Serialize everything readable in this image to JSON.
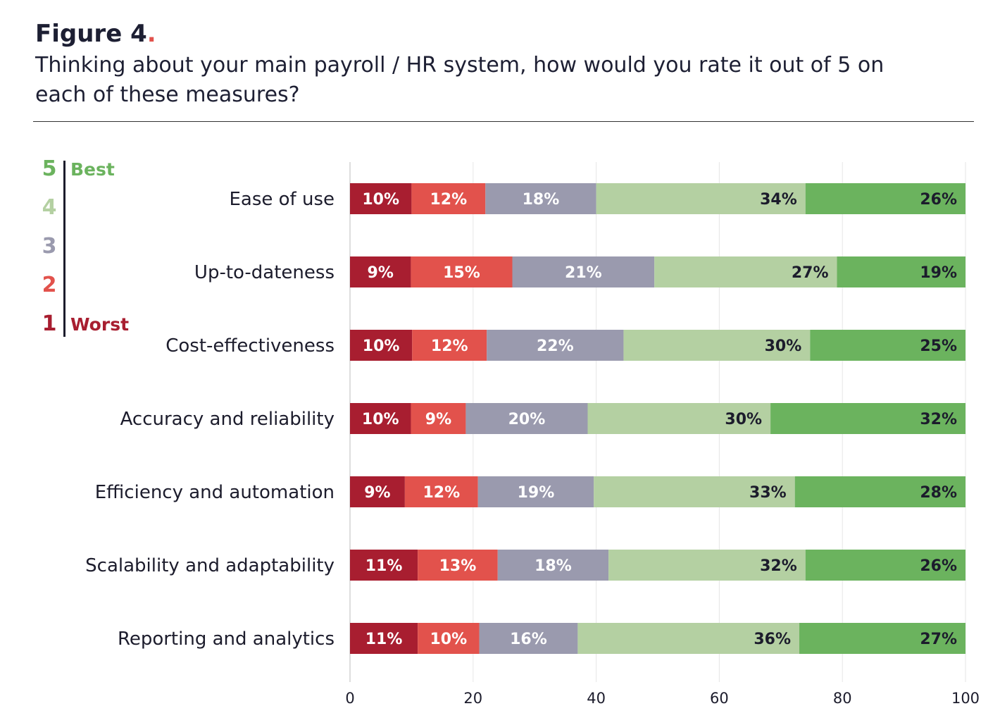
{
  "header": {
    "figure_label": "Figure 4",
    "figure_dot": ".",
    "subtitle": "Thinking about your main payroll / HR system, how would you rate it out of 5 on each of these measures?"
  },
  "scale_legend": {
    "items": [
      {
        "num": "5",
        "word": "Best",
        "color": "#6bb35e"
      },
      {
        "num": "4",
        "word": "",
        "color": "#b4d0a2"
      },
      {
        "num": "3",
        "word": "",
        "color": "#9a9aae"
      },
      {
        "num": "2",
        "word": "",
        "color": "#e2524c"
      },
      {
        "num": "1",
        "word": "Worst",
        "color": "#a81e30"
      }
    ]
  },
  "chart_data": {
    "type": "bar",
    "orientation": "horizontal",
    "stacked": true,
    "categories": [
      "Ease of use",
      "Up-to-dateness",
      "Cost-effectiveness",
      "Accuracy and reliability",
      "Efficiency and automation",
      "Scalability and adaptability",
      "Reporting and analytics"
    ],
    "series": [
      {
        "name": "1",
        "color": "#a81e30",
        "label_color": "#ffffff",
        "values": [
          10,
          9,
          10,
          10,
          9,
          11,
          11
        ],
        "labels": [
          "10%",
          "9%",
          "10%",
          "10%",
          "9%",
          "11%",
          "11%"
        ]
      },
      {
        "name": "2",
        "color": "#e2524c",
        "label_color": "#ffffff",
        "values": [
          12,
          15,
          12,
          9,
          12,
          13,
          10
        ],
        "labels": [
          "12%",
          "15%",
          "12%",
          "9%",
          "12%",
          "13%",
          "10%"
        ]
      },
      {
        "name": "3",
        "color": "#9a9aae",
        "label_color": "#ffffff",
        "values": [
          18,
          21,
          22,
          20,
          19,
          18,
          16
        ],
        "labels": [
          "18%",
          "21%",
          "22%",
          "20%",
          "19%",
          "18%",
          "16%"
        ]
      },
      {
        "name": "4",
        "color": "#b4d0a2",
        "label_color": "#1c1c2c",
        "values": [
          34,
          27,
          30,
          30,
          33,
          32,
          36
        ],
        "labels": [
          "34%",
          "27%",
          "30%",
          "30%",
          "33%",
          "32%",
          "36%"
        ]
      },
      {
        "name": "5",
        "color": "#6bb35e",
        "label_color": "#1c1c2c",
        "values": [
          26,
          19,
          25,
          32,
          28,
          26,
          27
        ],
        "labels": [
          "26%",
          "19%",
          "25%",
          "32%",
          "28%",
          "26%",
          "27%"
        ]
      }
    ],
    "xlim": [
      0,
      100
    ],
    "xticks": [
      "0",
      "20",
      "40",
      "60",
      "80",
      "100"
    ],
    "xlabel": "",
    "ylabel": "",
    "grid": true
  }
}
